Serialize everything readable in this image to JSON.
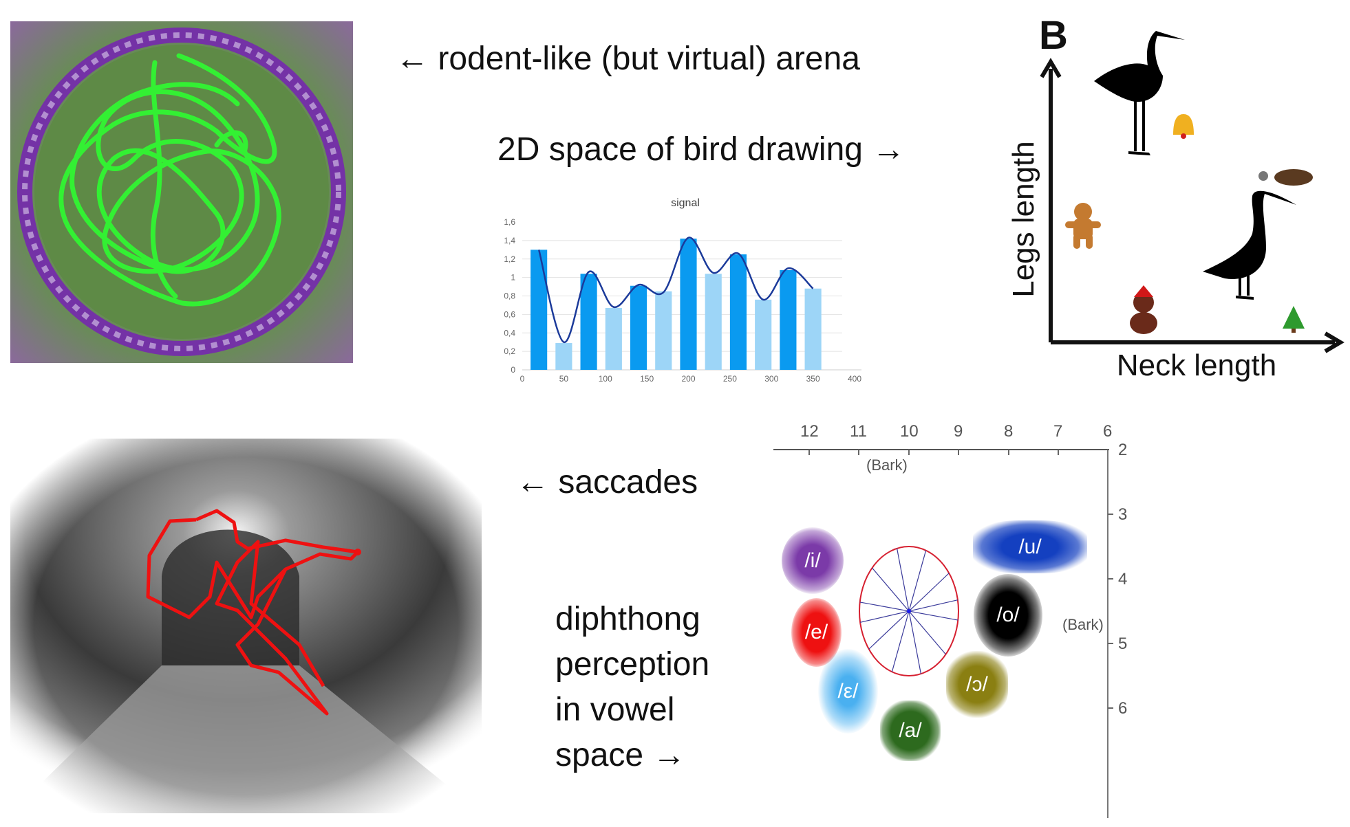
{
  "captions": {
    "arena": "← rodent-like (but virtual) arena",
    "bird_space": "2D space of bird drawing →",
    "saccades": "← saccades",
    "diphthong_lines": [
      "diphthong",
      "perception",
      "in vowel",
      "space →"
    ]
  },
  "bird_panel": {
    "panel_label": "B",
    "y_axis_label": "Legs length",
    "x_axis_label": "Neck length"
  },
  "chart_data": {
    "type": "bar",
    "title": "signal",
    "x": [
      20,
      50,
      80,
      110,
      140,
      170,
      200,
      230,
      260,
      290,
      320,
      350
    ],
    "series": [
      {
        "type": "bar",
        "values": [
          1.3,
          0.29,
          1.04,
          0.67,
          0.91,
          0.85,
          1.42,
          1.04,
          1.25,
          0.76,
          1.08,
          0.88
        ]
      },
      {
        "type": "line",
        "smooth": true,
        "values": [
          1.3,
          0.3,
          1.06,
          0.68,
          0.92,
          0.84,
          1.43,
          1.05,
          1.26,
          0.76,
          1.1,
          0.88
        ]
      }
    ],
    "bar_colors": [
      "#0a9af0",
      "#9dd5f7"
    ],
    "line_color": "#1b3a9a",
    "xlim": [
      0,
      400
    ],
    "ylim": [
      0,
      1.6
    ],
    "x_ticks": [
      "0",
      "50",
      "100",
      "150",
      "200",
      "250",
      "300",
      "350",
      "400"
    ],
    "y_ticks": [
      "0",
      "0,2",
      "0,4",
      "0,6",
      "0,8",
      "1",
      "1,2",
      "1,4",
      "1,6"
    ],
    "grid": true
  },
  "vowel_chart": {
    "x_ticks": [
      "12",
      "11",
      "10",
      "9",
      "8",
      "7",
      "6"
    ],
    "y_ticks": [
      "2",
      "3",
      "4",
      "5",
      "6"
    ],
    "x_unit": "(Bark)",
    "y_unit": "(Bark)",
    "vowels": [
      {
        "label": "/i/",
        "color": "#7b3aa8"
      },
      {
        "label": "/e/",
        "color": "#ee1111"
      },
      {
        "label": "/ε/",
        "color": "#5ab8f2"
      },
      {
        "label": "/a/",
        "color": "#2d6a1e"
      },
      {
        "label": "/ɔ/",
        "color": "#8a7f12"
      },
      {
        "label": "/o/",
        "color": "#000000"
      },
      {
        "label": "/u/",
        "color": "#1440c0"
      }
    ]
  }
}
